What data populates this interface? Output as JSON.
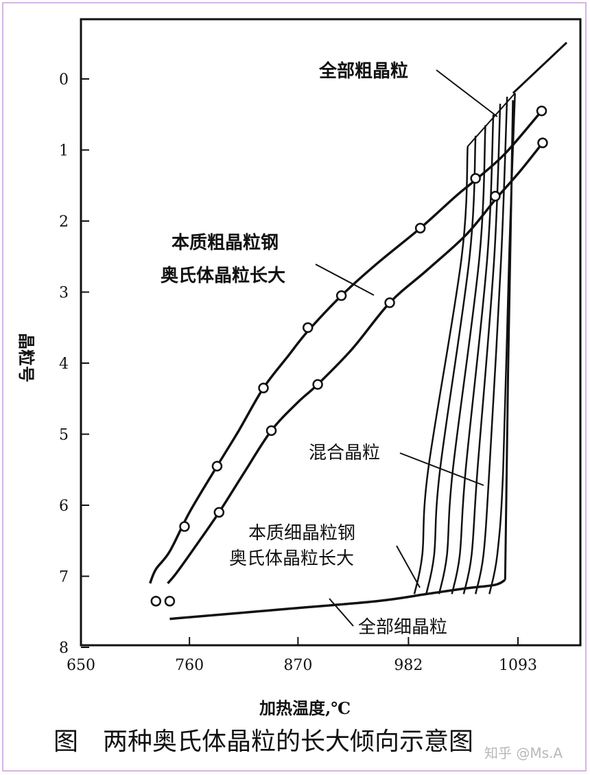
{
  "chart_data": {
    "type": "line",
    "xlabel": "加热温度,℃",
    "ylabel": "晶粒号",
    "x_ticks": [
      "650",
      "760",
      "870",
      "982",
      "1093"
    ],
    "y_ticks": [
      "0",
      "1",
      "2",
      "3",
      "4",
      "5",
      "6",
      "7",
      "8"
    ],
    "xlim": [
      650,
      1150
    ],
    "ylim": [
      8,
      -0.8
    ],
    "grid": false,
    "series": [
      {
        "name": "本质粗晶粒钢奥氏体晶粒长大",
        "points": [
          [
            726,
            7.35
          ],
          [
            755,
            6.3
          ],
          [
            788,
            5.45
          ],
          [
            835,
            4.35
          ],
          [
            880,
            3.5
          ],
          [
            914,
            3.05
          ],
          [
            994,
            2.1
          ],
          [
            1050,
            1.4
          ],
          [
            1117,
            0.45
          ]
        ],
        "curve": [
          [
            720,
            7.1
          ],
          [
            726,
            6.9
          ],
          [
            740,
            6.65
          ],
          [
            760,
            6.1
          ],
          [
            788,
            5.45
          ],
          [
            810,
            4.95
          ],
          [
            835,
            4.35
          ],
          [
            860,
            3.9
          ],
          [
            880,
            3.55
          ],
          [
            914,
            3.05
          ],
          [
            950,
            2.6
          ],
          [
            994,
            2.1
          ],
          [
            1030,
            1.65
          ],
          [
            1050,
            1.42
          ],
          [
            1080,
            1.05
          ],
          [
            1117,
            0.45
          ]
        ]
      },
      {
        "name": "",
        "points": [
          [
            740,
            7.35
          ],
          [
            790,
            6.1
          ],
          [
            843,
            4.95
          ],
          [
            890,
            4.3
          ],
          [
            963,
            3.15
          ],
          [
            1070,
            1.65
          ],
          [
            1118,
            0.9
          ]
        ],
        "curve": [
          [
            738,
            7.1
          ],
          [
            747,
            6.95
          ],
          [
            765,
            6.6
          ],
          [
            790,
            6.1
          ],
          [
            815,
            5.55
          ],
          [
            843,
            4.95
          ],
          [
            870,
            4.55
          ],
          [
            890,
            4.3
          ],
          [
            925,
            3.8
          ],
          [
            963,
            3.15
          ],
          [
            1000,
            2.7
          ],
          [
            1040,
            2.2
          ],
          [
            1070,
            1.7
          ],
          [
            1095,
            1.3
          ],
          [
            1118,
            0.9
          ]
        ]
      },
      {
        "name": "本质细晶粒钢奥氏体晶粒长大",
        "curve": [
          [
            740,
            7.6
          ],
          [
            850,
            7.47
          ],
          [
            950,
            7.35
          ],
          [
            1000,
            7.25
          ],
          [
            1040,
            7.17
          ],
          [
            1070,
            7.12
          ],
          [
            1080,
            7.05
          ]
        ],
        "continuation": [
          [
            1080,
            7.05
          ],
          [
            1120,
            0.3
          ],
          [
            1150,
            -0.5
          ]
        ]
      }
    ],
    "mixed_band": {
      "label": "混合晶粒",
      "lines_x_bottom": [
        1000,
        1012,
        1025,
        1038,
        1050,
        1062,
        1076
      ],
      "lines_x_top": [
        1042,
        1050,
        1060,
        1068,
        1075,
        1082,
        1090
      ],
      "y_top": [
        0.95,
        0.8,
        0.65,
        0.5,
        0.35,
        0.25,
        0.2
      ],
      "y_bottom": 7.2
    },
    "annotations": [
      {
        "text": "全部粗晶粒"
      },
      {
        "text": "本质粗晶粒钢"
      },
      {
        "text": "奥氏体晶粒长大"
      },
      {
        "text": "混合晶粒"
      },
      {
        "text": "本质细晶粒钢"
      },
      {
        "text": "奥氏体晶粒长大"
      },
      {
        "text": "全部细晶粒"
      }
    ]
  },
  "caption": "图　两种奥氏体晶粒的长大倾向示意图",
  "watermark": "知乎 @Ms.A",
  "colors": {
    "ink": "#111111",
    "border": "#d8b4e2",
    "watermark": "#b8b8b8"
  }
}
